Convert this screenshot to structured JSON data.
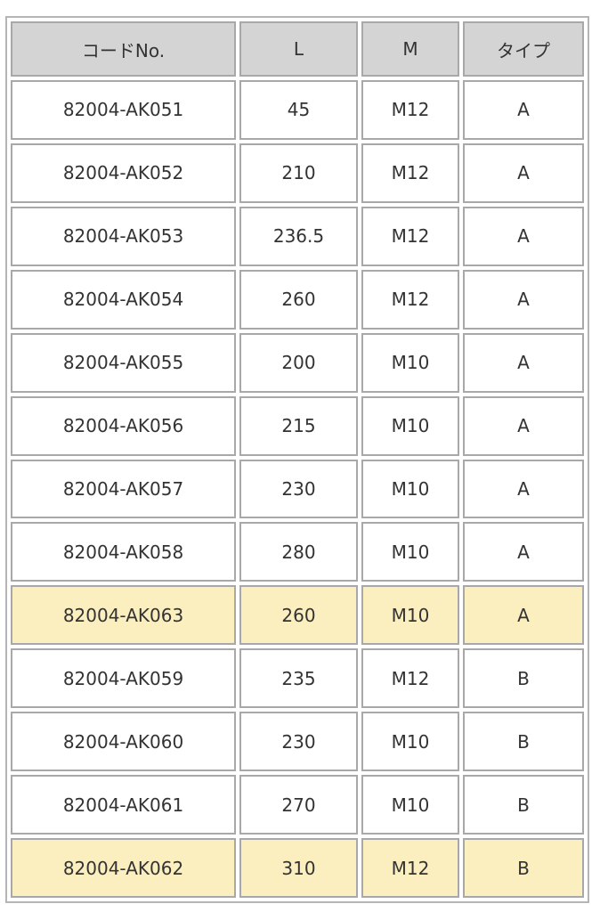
{
  "table": {
    "headers": [
      "コードNo.",
      "L",
      "M",
      "タイプ"
    ],
    "highlight_color": "#fcefbf",
    "header_color": "#d4d4d4",
    "rows": [
      {
        "code": "82004-AK051",
        "L": "45",
        "M": "M12",
        "type": "A",
        "highlight": false
      },
      {
        "code": "82004-AK052",
        "L": "210",
        "M": "M12",
        "type": "A",
        "highlight": false
      },
      {
        "code": "82004-AK053",
        "L": "236.5",
        "M": "M12",
        "type": "A",
        "highlight": false
      },
      {
        "code": "82004-AK054",
        "L": "260",
        "M": "M12",
        "type": "A",
        "highlight": false
      },
      {
        "code": "82004-AK055",
        "L": "200",
        "M": "M10",
        "type": "A",
        "highlight": false
      },
      {
        "code": "82004-AK056",
        "L": "215",
        "M": "M10",
        "type": "A",
        "highlight": false
      },
      {
        "code": "82004-AK057",
        "L": "230",
        "M": "M10",
        "type": "A",
        "highlight": false
      },
      {
        "code": "82004-AK058",
        "L": "280",
        "M": "M10",
        "type": "A",
        "highlight": false
      },
      {
        "code": "82004-AK063",
        "L": "260",
        "M": "M10",
        "type": "A",
        "highlight": true
      },
      {
        "code": "82004-AK059",
        "L": "235",
        "M": "M12",
        "type": "B",
        "highlight": false
      },
      {
        "code": "82004-AK060",
        "L": "230",
        "M": "M10",
        "type": "B",
        "highlight": false
      },
      {
        "code": "82004-AK061",
        "L": "270",
        "M": "M10",
        "type": "B",
        "highlight": false
      },
      {
        "code": "82004-AK062",
        "L": "310",
        "M": "M12",
        "type": "B",
        "highlight": true
      }
    ]
  }
}
